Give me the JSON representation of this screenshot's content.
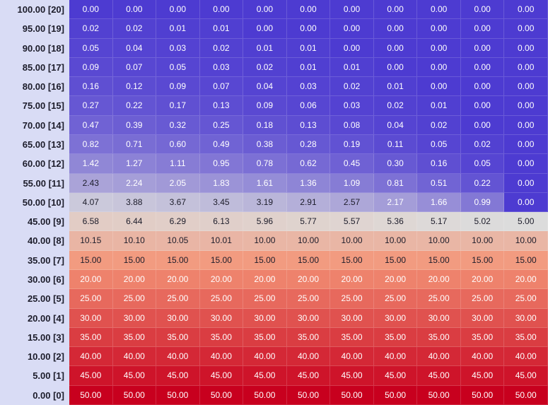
{
  "chart_data": {
    "type": "heatmap",
    "y_labels": [
      "100.00 [20]",
      "95.00 [19]",
      "90.00 [18]",
      "85.00 [17]",
      "80.00 [16]",
      "75.00 [15]",
      "70.00 [14]",
      "65.00 [13]",
      "60.00 [12]",
      "55.00 [11]",
      "50.00 [10]",
      "45.00 [9]",
      "40.00 [8]",
      "35.00 [7]",
      "30.00 [6]",
      "25.00 [5]",
      "20.00 [4]",
      "15.00 [3]",
      "10.00 [2]",
      "5.00 [1]",
      "0.00 [0]"
    ],
    "values": [
      [
        "0.00",
        "0.00",
        "0.00",
        "0.00",
        "0.00",
        "0.00",
        "0.00",
        "0.00",
        "0.00",
        "0.00",
        "0.00"
      ],
      [
        "0.02",
        "0.02",
        "0.01",
        "0.01",
        "0.00",
        "0.00",
        "0.00",
        "0.00",
        "0.00",
        "0.00",
        "0.00"
      ],
      [
        "0.05",
        "0.04",
        "0.03",
        "0.02",
        "0.01",
        "0.01",
        "0.00",
        "0.00",
        "0.00",
        "0.00",
        "0.00"
      ],
      [
        "0.09",
        "0.07",
        "0.05",
        "0.03",
        "0.02",
        "0.01",
        "0.01",
        "0.00",
        "0.00",
        "0.00",
        "0.00"
      ],
      [
        "0.16",
        "0.12",
        "0.09",
        "0.07",
        "0.04",
        "0.03",
        "0.02",
        "0.01",
        "0.00",
        "0.00",
        "0.00"
      ],
      [
        "0.27",
        "0.22",
        "0.17",
        "0.13",
        "0.09",
        "0.06",
        "0.03",
        "0.02",
        "0.01",
        "0.00",
        "0.00"
      ],
      [
        "0.47",
        "0.39",
        "0.32",
        "0.25",
        "0.18",
        "0.13",
        "0.08",
        "0.04",
        "0.02",
        "0.00",
        "0.00"
      ],
      [
        "0.82",
        "0.71",
        "0.60",
        "0.49",
        "0.38",
        "0.28",
        "0.19",
        "0.11",
        "0.05",
        "0.02",
        "0.00"
      ],
      [
        "1.42",
        "1.27",
        "1.11",
        "0.95",
        "0.78",
        "0.62",
        "0.45",
        "0.30",
        "0.16",
        "0.05",
        "0.00"
      ],
      [
        "2.43",
        "2.24",
        "2.05",
        "1.83",
        "1.61",
        "1.36",
        "1.09",
        "0.81",
        "0.51",
        "0.22",
        "0.00"
      ],
      [
        "4.07",
        "3.88",
        "3.67",
        "3.45",
        "3.19",
        "2.91",
        "2.57",
        "2.17",
        "1.66",
        "0.99",
        "0.00"
      ],
      [
        "6.58",
        "6.44",
        "6.29",
        "6.13",
        "5.96",
        "5.77",
        "5.57",
        "5.36",
        "5.17",
        "5.02",
        "5.00"
      ],
      [
        "10.15",
        "10.10",
        "10.05",
        "10.01",
        "10.00",
        "10.00",
        "10.00",
        "10.00",
        "10.00",
        "10.00",
        "10.00"
      ],
      [
        "15.00",
        "15.00",
        "15.00",
        "15.00",
        "15.00",
        "15.00",
        "15.00",
        "15.00",
        "15.00",
        "15.00",
        "15.00"
      ],
      [
        "20.00",
        "20.00",
        "20.00",
        "20.00",
        "20.00",
        "20.00",
        "20.00",
        "20.00",
        "20.00",
        "20.00",
        "20.00"
      ],
      [
        "25.00",
        "25.00",
        "25.00",
        "25.00",
        "25.00",
        "25.00",
        "25.00",
        "25.00",
        "25.00",
        "25.00",
        "25.00"
      ],
      [
        "30.00",
        "30.00",
        "30.00",
        "30.00",
        "30.00",
        "30.00",
        "30.00",
        "30.00",
        "30.00",
        "30.00",
        "30.00"
      ],
      [
        "35.00",
        "35.00",
        "35.00",
        "35.00",
        "35.00",
        "35.00",
        "35.00",
        "35.00",
        "35.00",
        "35.00",
        "35.00"
      ],
      [
        "40.00",
        "40.00",
        "40.00",
        "40.00",
        "40.00",
        "40.00",
        "40.00",
        "40.00",
        "40.00",
        "40.00",
        "40.00"
      ],
      [
        "45.00",
        "45.00",
        "45.00",
        "45.00",
        "45.00",
        "45.00",
        "45.00",
        "45.00",
        "45.00",
        "45.00",
        "45.00"
      ],
      [
        "50.00",
        "50.00",
        "50.00",
        "50.00",
        "50.00",
        "50.00",
        "50.00",
        "50.00",
        "50.00",
        "50.00",
        "50.00"
      ]
    ],
    "colorscale": {
      "min": 0,
      "mid": 5,
      "max": 50,
      "low_color": "#4d3bd1",
      "mid_color": "#dcdcdc",
      "high_color": "#c8001e"
    }
  }
}
